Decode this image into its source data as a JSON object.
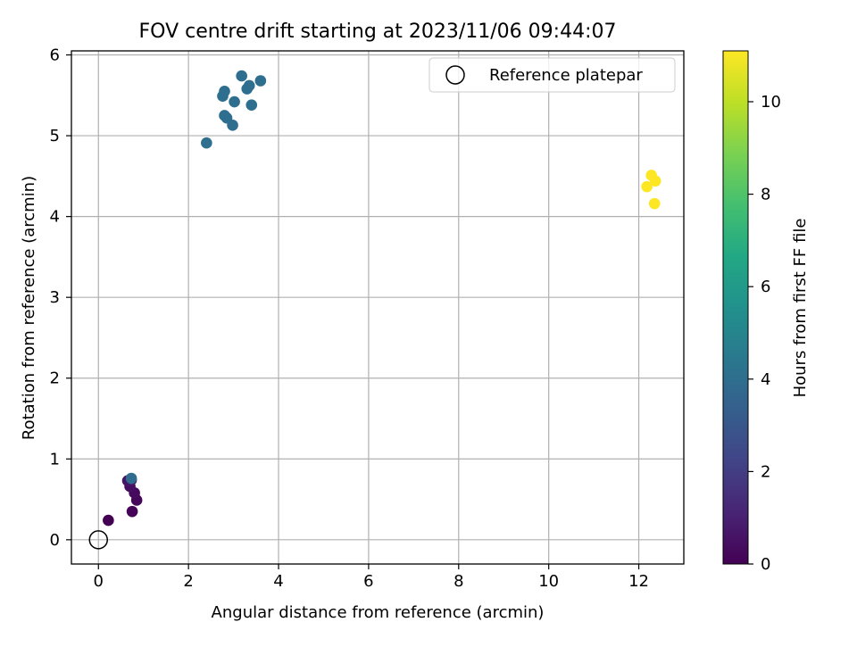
{
  "chart_data": {
    "type": "scatter",
    "title": "FOV centre drift starting at 2023/11/06 09:44:07",
    "xlabel": "Angular distance from reference (arcmin)",
    "ylabel": "Rotation from reference (arcmin)",
    "xlim": [
      -0.6,
      13.0
    ],
    "ylim": [
      -0.3,
      6.05
    ],
    "xticks": [
      0,
      2,
      4,
      6,
      8,
      10,
      12
    ],
    "yticks": [
      0,
      1,
      2,
      3,
      4,
      5,
      6
    ],
    "grid": true,
    "legend": {
      "placement": "top-right",
      "entries": [
        {
          "label": "Reference platepar",
          "marker": "open-circle"
        }
      ]
    },
    "reference_point": {
      "x": 0,
      "y": 0
    },
    "colorbar": {
      "label": "Hours from first FF file",
      "colormap": "viridis",
      "range": [
        0,
        11.1
      ],
      "ticks": [
        0,
        2,
        4,
        6,
        8,
        10
      ]
    },
    "points": [
      {
        "x": 0.22,
        "y": 0.24,
        "hours": 0.0
      },
      {
        "x": 0.75,
        "y": 0.35,
        "hours": 0.1
      },
      {
        "x": 0.85,
        "y": 0.49,
        "hours": 0.2
      },
      {
        "x": 0.8,
        "y": 0.58,
        "hours": 0.3
      },
      {
        "x": 0.7,
        "y": 0.66,
        "hours": 0.4
      },
      {
        "x": 0.65,
        "y": 0.73,
        "hours": 0.6
      },
      {
        "x": 0.73,
        "y": 0.74,
        "hours": 0.7
      },
      {
        "x": 0.73,
        "y": 0.76,
        "hours": 3.9
      },
      {
        "x": 2.4,
        "y": 4.91,
        "hours": 4.0
      },
      {
        "x": 2.98,
        "y": 5.13,
        "hours": 4.0
      },
      {
        "x": 2.85,
        "y": 5.22,
        "hours": 4.0
      },
      {
        "x": 2.8,
        "y": 5.25,
        "hours": 4.0
      },
      {
        "x": 3.4,
        "y": 5.38,
        "hours": 4.0
      },
      {
        "x": 3.02,
        "y": 5.42,
        "hours": 4.0
      },
      {
        "x": 2.76,
        "y": 5.49,
        "hours": 4.0
      },
      {
        "x": 2.8,
        "y": 5.55,
        "hours": 4.0
      },
      {
        "x": 3.3,
        "y": 5.58,
        "hours": 4.0
      },
      {
        "x": 3.35,
        "y": 5.62,
        "hours": 4.0
      },
      {
        "x": 3.6,
        "y": 5.68,
        "hours": 4.0
      },
      {
        "x": 3.18,
        "y": 5.74,
        "hours": 4.0
      },
      {
        "x": 12.35,
        "y": 4.16,
        "hours": 11.1
      },
      {
        "x": 12.18,
        "y": 4.37,
        "hours": 11.1
      },
      {
        "x": 12.37,
        "y": 4.44,
        "hours": 11.1
      },
      {
        "x": 12.28,
        "y": 4.51,
        "hours": 11.1
      }
    ]
  }
}
